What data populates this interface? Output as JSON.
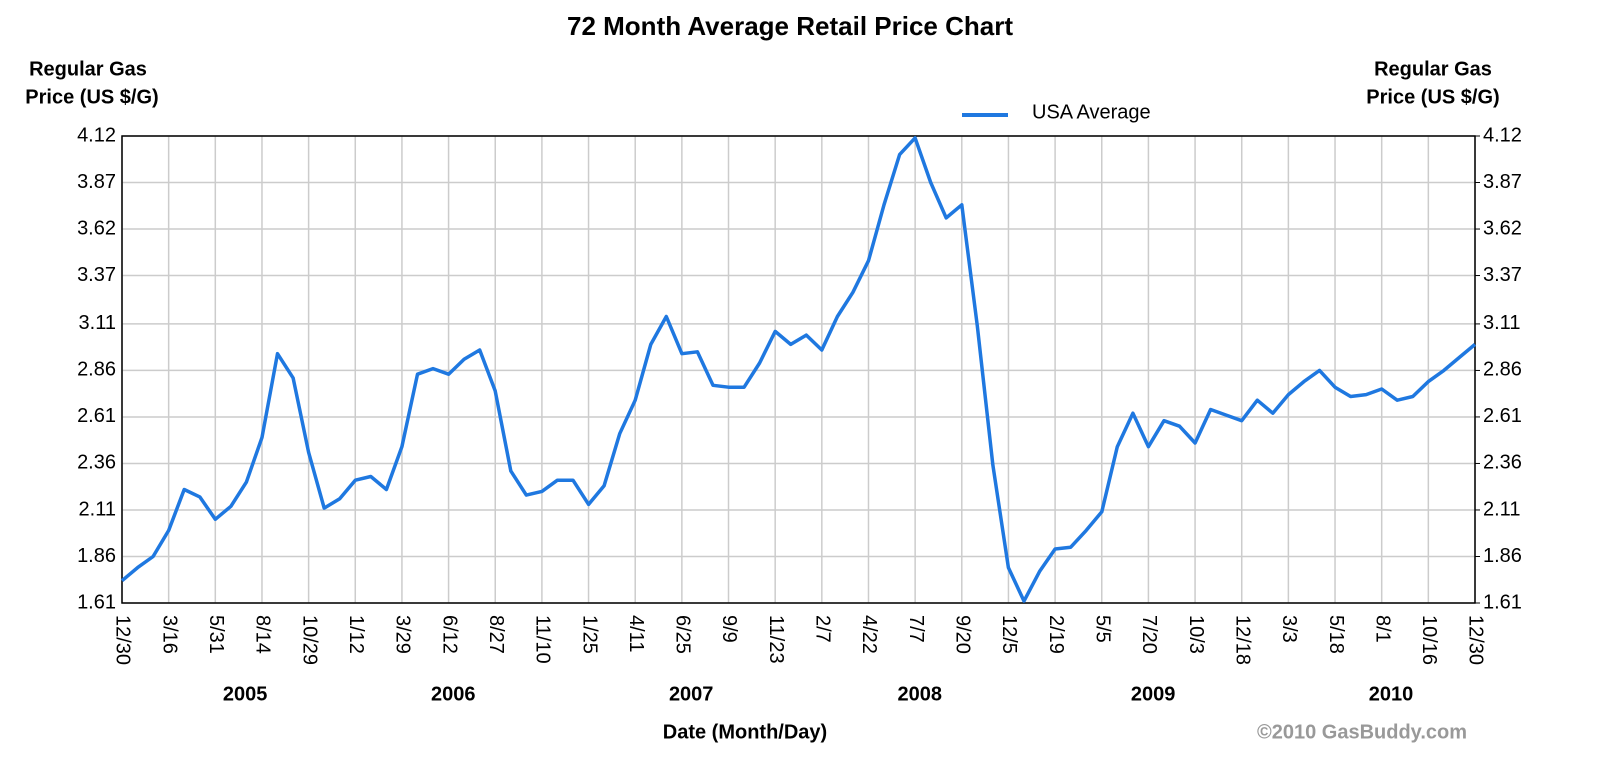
{
  "chart_data": {
    "type": "line",
    "title": "72 Month Average Retail Price Chart",
    "y_label": [
      "Regular Gas",
      "Price (US $/G)"
    ],
    "y2_label": [
      "Regular Gas",
      "Price (US $/G)"
    ],
    "x_label": "Date (Month/Day)",
    "credit": "©2010 GasBuddy.com",
    "years": [
      "2005",
      "2006",
      "2007",
      "2008",
      "2009",
      "2010"
    ],
    "categories": [
      "12/30",
      null,
      null,
      "3/16",
      null,
      null,
      "5/31",
      null,
      null,
      "8/14",
      null,
      null,
      "10/29",
      null,
      null,
      "1/12",
      null,
      null,
      "3/29",
      null,
      null,
      "6/12",
      null,
      null,
      "8/27",
      null,
      null,
      "11/10",
      null,
      null,
      "1/25",
      null,
      null,
      "4/11",
      null,
      null,
      "6/25",
      null,
      null,
      "9/9",
      null,
      null,
      "11/23",
      null,
      null,
      "2/7",
      null,
      null,
      "4/22",
      null,
      null,
      "7/7",
      null,
      null,
      "9/20",
      null,
      null,
      "12/5",
      null,
      null,
      "2/19",
      null,
      null,
      "5/5",
      null,
      null,
      "7/20",
      null,
      null,
      "10/3",
      null,
      null,
      "12/18",
      null,
      null,
      "3/3",
      null,
      null,
      "5/18",
      null,
      null,
      "8/1",
      null,
      null,
      "10/16",
      null,
      null,
      "12/30"
    ],
    "series": [
      {
        "name": "USA Average",
        "color": "#1f78e0",
        "values": [
          1.73,
          1.8,
          1.86,
          2.0,
          2.22,
          2.18,
          2.06,
          2.13,
          2.26,
          2.5,
          2.95,
          2.82,
          2.42,
          2.12,
          2.17,
          2.27,
          2.29,
          2.22,
          2.45,
          2.84,
          2.87,
          2.84,
          2.92,
          2.97,
          2.75,
          2.32,
          2.19,
          2.21,
          2.27,
          2.27,
          2.14,
          2.24,
          2.52,
          2.7,
          3.0,
          3.15,
          2.95,
          2.96,
          2.78,
          2.77,
          2.77,
          2.9,
          3.07,
          3.0,
          3.05,
          2.97,
          3.15,
          3.28,
          3.45,
          3.75,
          4.02,
          4.11,
          3.87,
          3.68,
          3.75,
          3.1,
          2.35,
          1.8,
          1.62,
          1.78,
          1.9,
          1.91,
          2.0,
          2.1,
          2.45,
          2.63,
          2.45,
          2.59,
          2.56,
          2.47,
          2.65,
          2.62,
          2.59,
          2.7,
          2.63,
          2.73,
          2.8,
          2.86,
          2.77,
          2.72,
          2.73,
          2.76,
          2.7,
          2.72,
          2.8,
          2.86,
          2.93,
          3.0
        ]
      }
    ],
    "ylim": [
      1.61,
      4.12
    ],
    "yticks": [
      1.61,
      1.86,
      2.11,
      2.36,
      2.61,
      2.86,
      3.11,
      3.37,
      3.62,
      3.87,
      4.12
    ],
    "y2lim": [
      1.61,
      4.12
    ],
    "y2ticks": [
      1.61,
      1.86,
      2.11,
      2.36,
      2.61,
      2.86,
      3.11,
      3.37,
      3.62,
      3.87,
      4.12
    ],
    "grid": true,
    "legend": "top"
  }
}
